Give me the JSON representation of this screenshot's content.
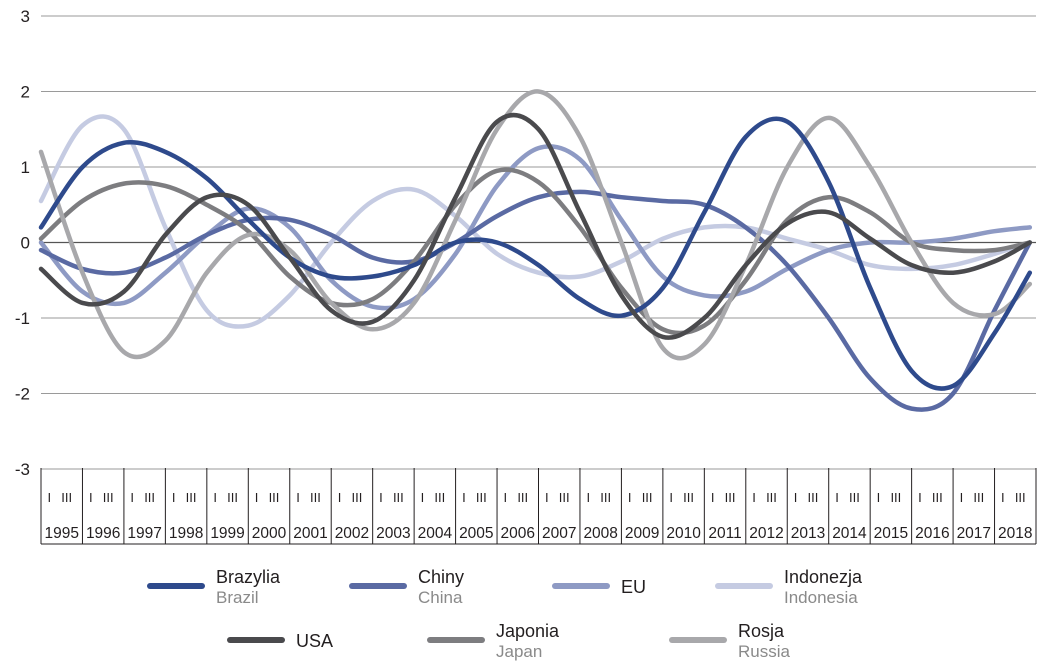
{
  "chart_data": {
    "type": "line",
    "title": "",
    "xlabel": "",
    "ylabel": "",
    "ylim": [
      -3,
      3
    ],
    "yticks": [
      "3",
      "2",
      "1",
      "0",
      "-1",
      "-2",
      "-3"
    ],
    "years": [
      "1995",
      "1996",
      "1997",
      "1998",
      "1999",
      "2000",
      "2001",
      "2002",
      "2003",
      "2004",
      "2005",
      "2006",
      "2007",
      "2008",
      "2009",
      "2010",
      "2011",
      "2012",
      "2013",
      "2014",
      "2015",
      "2016",
      "2017",
      "2018"
    ],
    "quarter_labels": [
      "I",
      "III"
    ],
    "x_range": [
      1995,
      2019
    ],
    "grid": true,
    "legend_position": "bottom",
    "series": [
      {
        "name": "Brazylia",
        "name_en": "Brazil",
        "color": "#2e4a8c",
        "x": [
          1995.0,
          1996.0,
          1997.0,
          1998.0,
          1999.0,
          2000.0,
          2001.0,
          2002.0,
          2003.0,
          2004.0,
          2005.0,
          2006.0,
          2007.0,
          2008.0,
          2009.0,
          2010.0,
          2011.0,
          2012.0,
          2013.0,
          2014.0,
          2015.0,
          2016.0,
          2017.0,
          2018.0,
          2018.85
        ],
        "y": [
          0.2,
          1.0,
          1.32,
          1.2,
          0.85,
          0.3,
          -0.2,
          -0.45,
          -0.45,
          -0.3,
          0.0,
          0.0,
          -0.3,
          -0.75,
          -0.97,
          -0.6,
          0.4,
          1.4,
          1.6,
          0.8,
          -0.6,
          -1.7,
          -1.9,
          -1.2,
          -0.4
        ]
      },
      {
        "name": "Chiny",
        "name_en": "China",
        "color": "#5a6aa3",
        "x": [
          1995.0,
          1996.0,
          1997.0,
          1998.0,
          1999.0,
          2000.0,
          2001.0,
          2002.0,
          2003.0,
          2004.0,
          2005.0,
          2006.0,
          2007.0,
          2008.0,
          2009.0,
          2010.0,
          2011.0,
          2012.0,
          2013.0,
          2014.0,
          2015.0,
          2016.0,
          2017.0,
          2018.0,
          2018.85
        ],
        "y": [
          -0.1,
          -0.35,
          -0.4,
          -0.2,
          0.1,
          0.3,
          0.3,
          0.1,
          -0.2,
          -0.25,
          0.0,
          0.35,
          0.6,
          0.67,
          0.6,
          0.55,
          0.5,
          0.2,
          -0.3,
          -1.0,
          -1.8,
          -2.2,
          -2.0,
          -0.9,
          0.0
        ]
      },
      {
        "name": "EU",
        "name_en": "",
        "color": "#8e9ac4",
        "x": [
          1995.0,
          1996.0,
          1997.0,
          1998.0,
          1999.0,
          2000.0,
          2001.0,
          2002.0,
          2003.0,
          2004.0,
          2005.0,
          2006.0,
          2007.0,
          2008.0,
          2009.0,
          2010.0,
          2011.0,
          2012.0,
          2013.0,
          2014.0,
          2015.0,
          2016.0,
          2017.0,
          2018.0,
          2018.85
        ],
        "y": [
          0.0,
          -0.65,
          -0.8,
          -0.4,
          0.1,
          0.45,
          0.2,
          -0.5,
          -0.85,
          -0.75,
          -0.15,
          0.75,
          1.25,
          1.1,
          0.3,
          -0.45,
          -0.7,
          -0.65,
          -0.35,
          -0.1,
          0.0,
          0.0,
          0.05,
          0.15,
          0.2
        ]
      },
      {
        "name": "Indonezja",
        "name_en": "Indonesia",
        "color": "#c5cbe2",
        "x": [
          1995.0,
          1996.0,
          1997.0,
          1998.0,
          1999.0,
          2000.0,
          2001.0,
          2002.0,
          2003.0,
          2004.0,
          2005.0,
          2006.0,
          2007.0,
          2008.0,
          2009.0,
          2010.0,
          2011.0,
          2012.0,
          2013.0,
          2014.0,
          2015.0,
          2016.0,
          2017.0,
          2018.0,
          2018.85
        ],
        "y": [
          0.55,
          1.55,
          1.5,
          0.2,
          -0.9,
          -1.1,
          -0.7,
          0.0,
          0.55,
          0.7,
          0.35,
          -0.15,
          -0.4,
          -0.45,
          -0.25,
          0.05,
          0.2,
          0.2,
          0.05,
          -0.1,
          -0.3,
          -0.35,
          -0.3,
          -0.15,
          0.0
        ]
      },
      {
        "name": "USA",
        "name_en": "",
        "color": "#4a4a4d",
        "x": [
          1995.0,
          1996.0,
          1997.0,
          1998.0,
          1999.0,
          2000.0,
          2001.0,
          2002.0,
          2003.0,
          2004.0,
          2005.0,
          2006.0,
          2007.0,
          2008.0,
          2009.0,
          2010.0,
          2011.0,
          2012.0,
          2013.0,
          2014.0,
          2015.0,
          2016.0,
          2017.0,
          2018.0,
          2018.85
        ],
        "y": [
          -0.35,
          -0.8,
          -0.65,
          0.1,
          0.6,
          0.5,
          -0.2,
          -0.9,
          -1.05,
          -0.5,
          0.6,
          1.6,
          1.5,
          0.4,
          -0.7,
          -1.25,
          -1.0,
          -0.3,
          0.25,
          0.4,
          0.05,
          -0.3,
          -0.4,
          -0.25,
          0.0
        ]
      },
      {
        "name": "Japonia",
        "name_en": "Japan",
        "color": "#7d7d80",
        "x": [
          1995.0,
          1996.0,
          1997.0,
          1998.0,
          1999.0,
          2000.0,
          2001.0,
          2002.0,
          2003.0,
          2004.0,
          2005.0,
          2006.0,
          2007.0,
          2008.0,
          2009.0,
          2010.0,
          2011.0,
          2012.0,
          2013.0,
          2014.0,
          2015.0,
          2016.0,
          2017.0,
          2018.0,
          2018.85
        ],
        "y": [
          0.05,
          0.55,
          0.78,
          0.75,
          0.5,
          0.15,
          -0.45,
          -0.8,
          -0.75,
          -0.25,
          0.5,
          0.95,
          0.8,
          0.2,
          -0.6,
          -1.15,
          -1.1,
          -0.5,
          0.3,
          0.6,
          0.4,
          0.0,
          -0.1,
          -0.1,
          0.0
        ]
      },
      {
        "name": "Rosja",
        "name_en": "Russia",
        "color": "#a8a8ab",
        "x": [
          1995.0,
          1996.0,
          1997.0,
          1998.0,
          1999.0,
          2000.0,
          2001.0,
          2002.0,
          2003.0,
          2004.0,
          2005.0,
          2006.0,
          2007.0,
          2008.0,
          2009.0,
          2010.0,
          2011.0,
          2012.0,
          2013.0,
          2014.0,
          2015.0,
          2016.0,
          2017.0,
          2018.0,
          2018.85
        ],
        "y": [
          1.2,
          -0.4,
          -1.45,
          -1.3,
          -0.4,
          0.1,
          -0.1,
          -0.8,
          -1.15,
          -0.8,
          0.3,
          1.5,
          2.0,
          1.4,
          0.0,
          -1.4,
          -1.35,
          -0.3,
          1.0,
          1.65,
          1.0,
          0.0,
          -0.8,
          -0.95,
          -0.55
        ]
      }
    ]
  }
}
